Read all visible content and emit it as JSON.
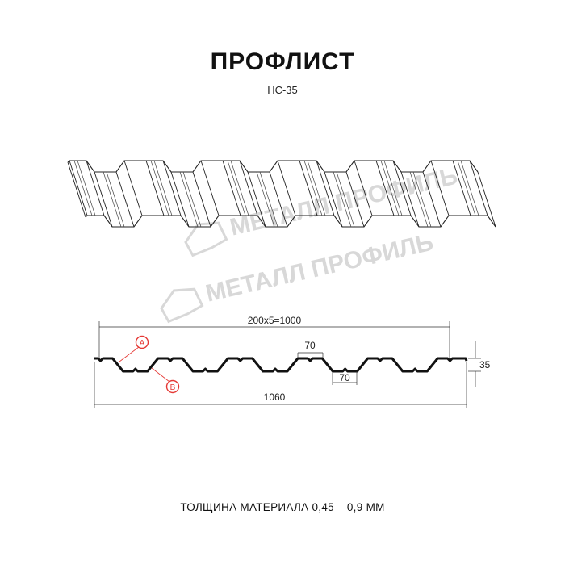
{
  "title": "ПРОФЛИСТ",
  "subtitle": "НС-35",
  "watermark": "МЕТАЛЛ ПРОФИЛЬ",
  "dimensions": {
    "pitch_total": "200x5=1000",
    "top_flat": "70",
    "bottom_flat": "70",
    "height": "35",
    "full_width": "1060"
  },
  "labels": {
    "a": "A",
    "b": "B"
  },
  "footer": "ТОЛЩИНА МАТЕРИАЛА 0,45 – 0,9 ММ",
  "colors": {
    "profile": "#111111",
    "marker": "#e53935",
    "watermark": "#d8d8d8"
  }
}
